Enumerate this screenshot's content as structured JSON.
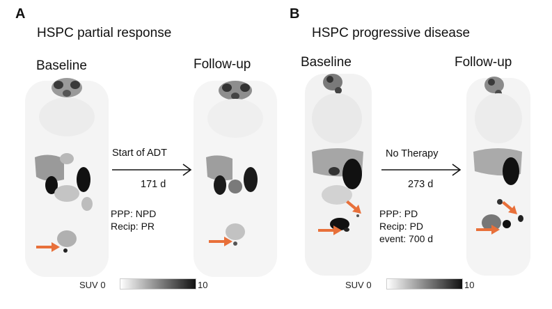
{
  "panels": [
    {
      "letter": "A",
      "title": "HSPC partial response",
      "baseline_label": "Baseline",
      "followup_label": "Follow-up",
      "arrow_top_text": "Start of ADT",
      "arrow_bottom_text": "171 d",
      "info_lines": [
        "PPP: NPD",
        "Recip: PR"
      ],
      "scale": {
        "label": "SUV 0",
        "max": "10"
      }
    },
    {
      "letter": "B",
      "title": "HSPC progressive disease",
      "baseline_label": "Baseline",
      "followup_label": "Follow-up",
      "arrow_top_text": "No Therapy",
      "arrow_bottom_text": "273 d",
      "info_lines": [
        "PPP: PD",
        "Recip: PD",
        "event: 700 d"
      ],
      "scale": {
        "label": "SUV 0",
        "max": "10"
      }
    }
  ],
  "colors": {
    "lesion_arrow": "#e8703a",
    "uptake_dark": "#111111",
    "background_scan": "#f3f3f3"
  },
  "icons": [
    "lesion-arrow-icon",
    "timeline-arrow-icon"
  ]
}
